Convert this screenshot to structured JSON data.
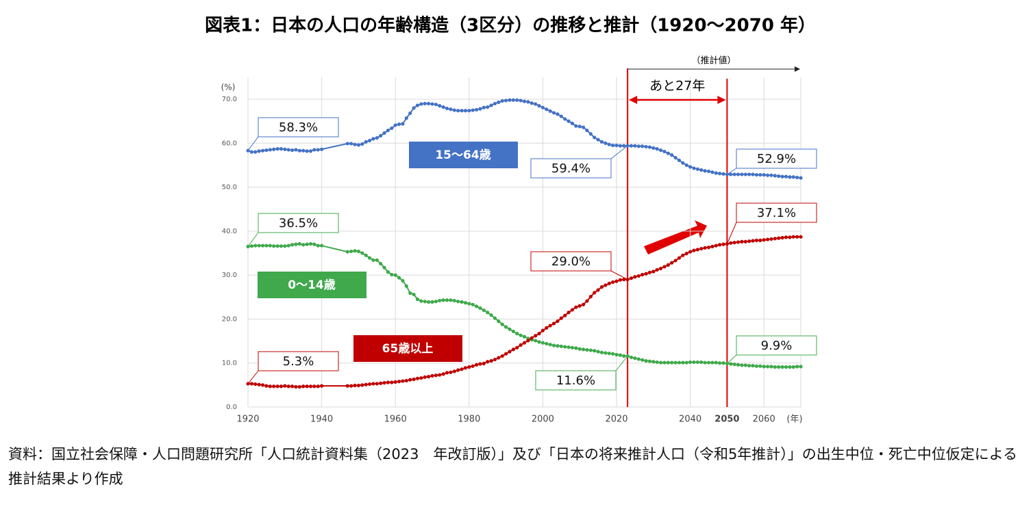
{
  "chart_data": {
    "type": "line",
    "title": "図表1：日本の人口の年齢構造（3区分）の推移と推計（1920〜2070 年）",
    "y_unit": "(%)",
    "x_unit": "(年)",
    "projection_label": "（推計値）",
    "interval_label": "あと27年",
    "source": "資料：国立社会保障・人口問題研究所「人口統計資料集（2023　年改訂版）」及び「日本の将来推計人口（令和5年推計）」の出生中位・死亡中位仮定による推計結果より作成",
    "xlim": [
      1920,
      2070
    ],
    "ylim": [
      0,
      70
    ],
    "xticks": [
      1920,
      1940,
      1960,
      1980,
      2000,
      2020,
      2040,
      2050,
      2060
    ],
    "yticks": [
      {
        "value": 0,
        "label": "0.0"
      },
      {
        "value": 10,
        "label": "10.0"
      },
      {
        "value": 20,
        "label": "20.0"
      },
      {
        "value": 30,
        "label": "30.0"
      },
      {
        "value": 40,
        "label": "40.0"
      },
      {
        "value": 50,
        "label": "50.0"
      },
      {
        "value": 60,
        "label": "60.0"
      },
      {
        "value": 70,
        "label": "70.0"
      }
    ],
    "grid": true,
    "x": [
      1920,
      1921,
      1922,
      1923,
      1924,
      1925,
      1926,
      1927,
      1928,
      1929,
      1930,
      1931,
      1932,
      1933,
      1934,
      1935,
      1936,
      1937,
      1938,
      1939,
      1940,
      1947,
      1948,
      1949,
      1950,
      1951,
      1952,
      1953,
      1954,
      1955,
      1956,
      1957,
      1958,
      1959,
      1960,
      1961,
      1962,
      1963,
      1964,
      1965,
      1966,
      1967,
      1968,
      1969,
      1970,
      1971,
      1972,
      1973,
      1974,
      1975,
      1976,
      1977,
      1978,
      1979,
      1980,
      1981,
      1982,
      1983,
      1984,
      1985,
      1986,
      1987,
      1988,
      1989,
      1990,
      1991,
      1992,
      1993,
      1994,
      1995,
      1996,
      1997,
      1998,
      1999,
      2000,
      2001,
      2002,
      2003,
      2004,
      2005,
      2006,
      2007,
      2008,
      2009,
      2010,
      2011,
      2012,
      2013,
      2014,
      2015,
      2016,
      2017,
      2018,
      2019,
      2020,
      2021,
      2022,
      2023,
      2024,
      2025,
      2026,
      2027,
      2028,
      2029,
      2030,
      2031,
      2032,
      2033,
      2034,
      2035,
      2036,
      2037,
      2038,
      2039,
      2040,
      2041,
      2042,
      2043,
      2044,
      2045,
      2046,
      2047,
      2048,
      2049,
      2050,
      2051,
      2052,
      2053,
      2054,
      2055,
      2056,
      2057,
      2058,
      2059,
      2060,
      2061,
      2062,
      2063,
      2064,
      2065,
      2066,
      2067,
      2068,
      2069,
      2070
    ],
    "series": [
      {
        "name": "15〜64歳",
        "color": "#4472c4",
        "values": [
          58.3,
          58.0,
          58.0,
          58.2,
          58.3,
          58.4,
          58.5,
          58.6,
          58.7,
          58.7,
          58.6,
          58.5,
          58.4,
          58.5,
          58.3,
          58.3,
          58.2,
          58.2,
          58.5,
          58.5,
          58.6,
          59.9,
          59.9,
          59.7,
          59.6,
          59.8,
          60.3,
          60.6,
          61.0,
          61.2,
          61.7,
          62.3,
          62.9,
          63.4,
          64.1,
          64.3,
          64.4,
          65.7,
          66.8,
          68.0,
          68.6,
          68.9,
          69.0,
          69.0,
          68.9,
          68.8,
          68.5,
          68.2,
          67.9,
          67.7,
          67.5,
          67.4,
          67.4,
          67.4,
          67.4,
          67.5,
          67.6,
          67.8,
          68.1,
          68.2,
          68.6,
          69.0,
          69.3,
          69.6,
          69.7,
          69.8,
          69.8,
          69.8,
          69.7,
          69.5,
          69.4,
          69.1,
          68.9,
          68.5,
          68.1,
          67.7,
          67.3,
          66.9,
          66.6,
          66.1,
          65.5,
          65.0,
          64.5,
          63.9,
          63.8,
          63.6,
          62.9,
          62.1,
          61.3,
          60.8,
          60.3,
          60.0,
          59.7,
          59.5,
          59.5,
          59.4,
          59.4,
          59.4,
          59.4,
          59.4,
          59.3,
          59.3,
          59.2,
          59.1,
          58.9,
          58.7,
          58.4,
          58.1,
          57.7,
          57.3,
          56.7,
          56.1,
          55.5,
          55.0,
          54.6,
          54.3,
          54.1,
          53.9,
          53.7,
          53.6,
          53.4,
          53.2,
          53.1,
          53.0,
          52.9,
          52.9,
          52.9,
          52.9,
          52.9,
          52.9,
          52.9,
          52.9,
          52.8,
          52.8,
          52.8,
          52.7,
          52.7,
          52.6,
          52.5,
          52.4,
          52.4,
          52.3,
          52.3,
          52.2,
          52.1
        ],
        "value_labels": {
          "0": "58.3%",
          "97": "59.4%",
          "124": "52.9%"
        }
      },
      {
        "name": "0〜14歳",
        "color": "#3fa94b",
        "values": [
          36.5,
          36.6,
          36.7,
          36.7,
          36.7,
          36.7,
          36.7,
          36.6,
          36.6,
          36.6,
          36.6,
          36.7,
          36.9,
          37.0,
          37.1,
          36.9,
          37.0,
          37.1,
          37.0,
          36.7,
          36.7,
          35.3,
          35.4,
          35.5,
          35.4,
          35.0,
          34.5,
          33.9,
          33.4,
          33.4,
          32.6,
          31.7,
          30.7,
          30.1,
          30.0,
          29.4,
          28.7,
          27.5,
          25.9,
          25.6,
          24.5,
          24.1,
          24.0,
          23.9,
          23.9,
          24.0,
          24.2,
          24.3,
          24.3,
          24.3,
          24.2,
          24.0,
          23.9,
          23.7,
          23.5,
          23.3,
          22.9,
          22.5,
          22.0,
          21.5,
          20.9,
          20.2,
          19.5,
          18.8,
          18.2,
          17.7,
          17.2,
          16.7,
          16.3,
          16.0,
          15.6,
          15.3,
          15.1,
          14.8,
          14.6,
          14.4,
          14.2,
          14.0,
          13.9,
          13.8,
          13.7,
          13.6,
          13.5,
          13.4,
          13.2,
          13.1,
          13.0,
          12.9,
          12.8,
          12.6,
          12.4,
          12.3,
          12.2,
          12.1,
          11.9,
          11.8,
          11.6,
          11.6,
          11.3,
          11.1,
          10.9,
          10.7,
          10.5,
          10.4,
          10.3,
          10.2,
          10.1,
          10.1,
          10.1,
          10.1,
          10.1,
          10.1,
          10.1,
          10.1,
          10.2,
          10.2,
          10.2,
          10.2,
          10.1,
          10.1,
          10.1,
          10.1,
          10.0,
          10.0,
          9.9,
          9.8,
          9.7,
          9.6,
          9.5,
          9.5,
          9.4,
          9.4,
          9.3,
          9.3,
          9.2,
          9.2,
          9.2,
          9.1,
          9.1,
          9.1,
          9.1,
          9.1,
          9.1,
          9.2,
          9.2
        ],
        "value_labels": {
          "0": "36.5%",
          "97": "11.6%",
          "124": "9.9%"
        }
      },
      {
        "name": "65歳以上",
        "color": "#c00000",
        "values": [
          5.3,
          5.3,
          5.2,
          5.1,
          5.0,
          4.8,
          4.7,
          4.7,
          4.7,
          4.7,
          4.8,
          4.7,
          4.7,
          4.6,
          4.6,
          4.7,
          4.7,
          4.7,
          4.7,
          4.7,
          4.8,
          4.8,
          4.8,
          4.9,
          4.9,
          5.0,
          5.1,
          5.2,
          5.3,
          5.3,
          5.4,
          5.5,
          5.6,
          5.6,
          5.7,
          5.8,
          5.9,
          6.0,
          6.2,
          6.3,
          6.5,
          6.6,
          6.8,
          6.9,
          7.1,
          7.2,
          7.3,
          7.5,
          7.8,
          7.9,
          8.1,
          8.4,
          8.6,
          8.9,
          9.1,
          9.3,
          9.6,
          9.8,
          9.9,
          10.3,
          10.5,
          10.8,
          11.2,
          11.6,
          12.1,
          12.6,
          13.1,
          13.5,
          14.1,
          14.6,
          15.1,
          15.7,
          16.2,
          16.7,
          17.4,
          18.0,
          18.5,
          19.0,
          19.5,
          20.2,
          20.8,
          21.5,
          22.1,
          22.7,
          23.0,
          23.3,
          24.1,
          25.1,
          26.0,
          26.6,
          27.3,
          27.7,
          28.1,
          28.4,
          28.6,
          28.9,
          29.0,
          29.0,
          29.3,
          29.6,
          29.8,
          30.1,
          30.3,
          30.6,
          30.8,
          31.2,
          31.5,
          31.9,
          32.3,
          32.8,
          33.3,
          33.9,
          34.5,
          34.9,
          35.3,
          35.6,
          35.8,
          36.0,
          36.2,
          36.3,
          36.5,
          36.7,
          36.9,
          37.0,
          37.1,
          37.3,
          37.4,
          37.5,
          37.6,
          37.6,
          37.7,
          37.8,
          37.9,
          37.9,
          38.0,
          38.1,
          38.2,
          38.3,
          38.4,
          38.5,
          38.6,
          38.6,
          38.7,
          38.7,
          38.7
        ],
        "value_labels": {
          "0": "5.3%",
          "97": "29.0%",
          "124": "37.1%"
        }
      }
    ]
  }
}
